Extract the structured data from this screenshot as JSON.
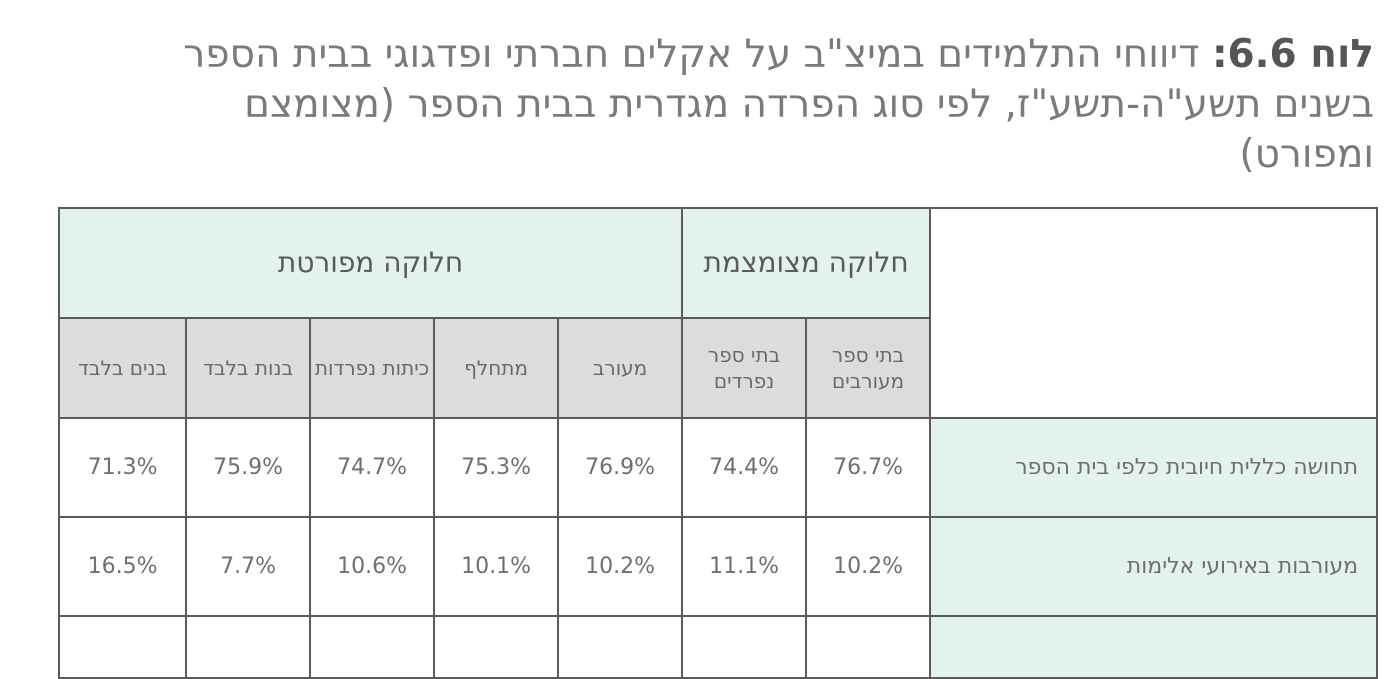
{
  "title": {
    "label": "לוח 6.6:",
    "text": " דיווחי התלמידים במיצ\"ב על אקלים חברתי ופדגוגי בבית הספר בשנים תשע\"ה-תשע\"ז, לפי סוג הפרדה מגדרית בבית הספר (מצומצם ומפורט)"
  },
  "table": {
    "groups": {
      "narrow": "חלוקה מצומצמת",
      "detailed": "חלוקה מפורטת"
    },
    "columns": [
      "בתי ספר מעורבים",
      "בתי ספר נפרדים",
      "מעורב",
      "מתחלף",
      "כיתות נפרדות",
      "בנות בלבד",
      "בנים בלבד"
    ],
    "rows": [
      {
        "label": "תחושה כללית חיובית כלפי בית הספר",
        "values": [
          "76.7%",
          "74.4%",
          "76.9%",
          "75.3%",
          "74.7%",
          "75.9%",
          "71.3%"
        ]
      },
      {
        "label": "מעורבות באירועי אלימות",
        "values": [
          "10.2%",
          "11.1%",
          "10.2%",
          "10.1%",
          "10.6%",
          "7.7%",
          "16.5%"
        ]
      }
    ]
  }
}
